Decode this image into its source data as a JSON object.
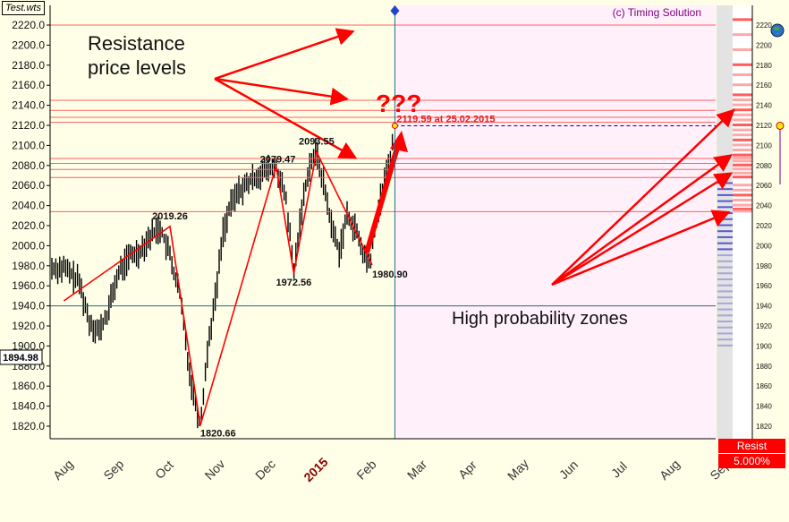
{
  "window": {
    "file_label": "Test.wts",
    "copyright": "(c) Timing Solution"
  },
  "chart_data": {
    "type": "line",
    "title": "",
    "xlabel": "",
    "ylabel": "",
    "ylim": [
      1810,
      2230
    ],
    "yticks": [
      1820,
      1840,
      1860,
      1880,
      1900,
      1920,
      1940,
      1960,
      1980,
      2000,
      2020,
      2040,
      2060,
      2080,
      2100,
      2120,
      2140,
      2160,
      2180,
      2200,
      2220
    ],
    "right_ticks": [
      1820,
      1840,
      1860,
      1880,
      1900,
      1920,
      1940,
      1960,
      1980,
      2000,
      2020,
      2040,
      2060,
      2080,
      2100,
      2120,
      2140,
      2160,
      2180,
      2200,
      2220
    ],
    "month_labels": [
      "Aug",
      "Sep",
      "Oct",
      "Nov",
      "Dec",
      "2015",
      "Feb",
      "Mar",
      "Apr",
      "May",
      "Jun",
      "Jul",
      "Aug",
      "Sep"
    ],
    "current_price_label": "1894.98",
    "series": [
      {
        "x": [
          -0.1,
          0.2,
          0.4,
          0.6,
          0.75,
          0.9,
          1.0,
          1.2,
          1.4,
          1.6,
          1.8,
          2.0,
          2.2,
          2.4,
          2.6,
          2.75,
          2.9,
          3.05,
          3.2,
          3.35,
          3.5,
          3.7,
          3.9,
          4.1,
          4.3,
          4.45,
          4.6,
          4.75,
          4.9,
          5.05,
          5.2,
          5.35,
          5.5,
          5.65,
          5.8,
          5.95,
          6.1,
          6.2,
          6.3,
          6.4
        ],
        "values": [
          1978,
          1965,
          1925,
          1915,
          1930,
          1960,
          1975,
          1990,
          1995,
          2010,
          2019,
          1990,
          1950,
          1870,
          1821,
          1900,
          1950,
          2015,
          2040,
          2055,
          2060,
          2070,
          2075,
          2079,
          2045,
          1973,
          2035,
          2080,
          2094,
          2060,
          2020,
          1995,
          2030,
          2020,
          1995,
          1981,
          2030,
          2055,
          2075,
          2100
        ]
      }
    ],
    "pivots": [
      {
        "x": 2.0,
        "y": 2019.26,
        "label": "2019.26"
      },
      {
        "x": 2.6,
        "y": 1820.66,
        "label": "1820.66"
      },
      {
        "x": 4.1,
        "y": 2079.47,
        "label": "2079.47"
      },
      {
        "x": 4.45,
        "y": 1972.56,
        "label": "1972.56"
      },
      {
        "x": 4.9,
        "y": 2093.55,
        "label": "2093.55"
      },
      {
        "x": 6.0,
        "y": 1980.9,
        "label": "1980.90"
      }
    ],
    "target": {
      "x": 6.45,
      "y": 2119.59,
      "label": "2119.59 at 25.02.2015"
    },
    "resistance_levels": [
      2220,
      2145,
      2135,
      2128,
      2123,
      2087,
      2082,
      2076,
      2068,
      2034
    ],
    "horizontal_line": 1940,
    "today_x": 6.45,
    "annotations": [
      {
        "text": "Resistance",
        "kind": "title"
      },
      {
        "text": "price levels",
        "kind": "title"
      },
      {
        "text": "???",
        "kind": "question"
      },
      {
        "text": "High probability zones",
        "kind": "zone"
      }
    ],
    "legend": {
      "label": "Resist",
      "value": "5.000%"
    },
    "colors": {
      "background": "#FFFFE8",
      "forecast_bg": "#FFF0FA",
      "line": "#FF0000",
      "bars": "#000000",
      "axis": "#000000",
      "level": "#FF6060",
      "blue_bands": "#3333CC",
      "month_label": "#333333",
      "year_label": "#8B0000",
      "copyright": "#800080"
    }
  }
}
